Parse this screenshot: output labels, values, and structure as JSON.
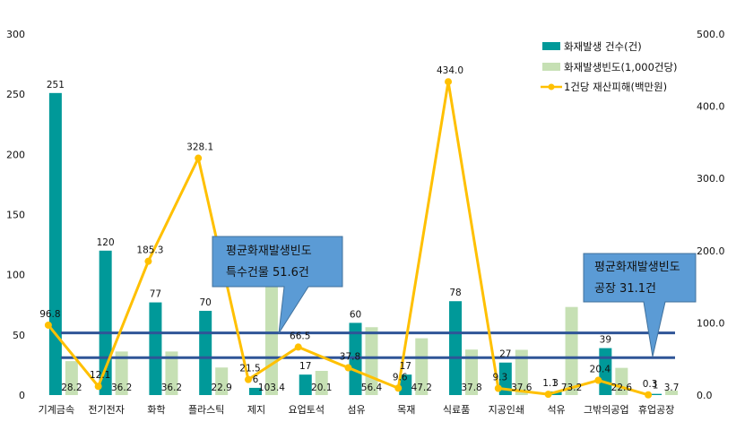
{
  "chart_data": {
    "type": "bar",
    "categories": [
      "기계금속",
      "전기전자",
      "화학",
      "플라스틱",
      "제지",
      "요업토석",
      "섬유",
      "목재",
      "식료품",
      "지공인쇄",
      "석유",
      "그밖의공업",
      "휴업공장"
    ],
    "series": [
      {
        "name": "화재발생 건수(건)",
        "kind": "bar",
        "axis": "left",
        "color": "#009999",
        "values": [
          251,
          120,
          77,
          70,
          6,
          17,
          60,
          17,
          78,
          27,
          3,
          39,
          1
        ],
        "labels": [
          "251",
          "120",
          "77",
          "70",
          "6",
          "17",
          "60",
          "17",
          "78",
          "27",
          "3",
          "39",
          "1"
        ]
      },
      {
        "name": "화재발생빈도(1,000건당)",
        "kind": "bar",
        "axis": "left",
        "color": "#c6e0b4",
        "values": [
          28.2,
          36.2,
          36.2,
          22.9,
          103.4,
          20.1,
          56.4,
          47.2,
          37.8,
          37.6,
          73.2,
          22.6,
          3.7
        ],
        "labels": [
          "28.2",
          "36.2",
          "36.2",
          "22.9",
          "103.4",
          "20.1",
          "56.4",
          "47.2",
          "37.8",
          "37.6",
          "73.2",
          "22.6",
          "3.7"
        ]
      },
      {
        "name": "1건당 재산피해(백만원)",
        "kind": "line",
        "axis": "right",
        "color": "#ffc000",
        "values": [
          96.8,
          12.1,
          185.3,
          328.1,
          21.5,
          66.5,
          37.8,
          9.6,
          434.0,
          9.3,
          1.1,
          20.4,
          0.3
        ],
        "labels": [
          "96.8",
          "12.1",
          "185.3",
          "328.1",
          "21.5",
          "66.5",
          "37.8",
          "9.6",
          "434.0",
          "9.3",
          "1.1",
          "20.4",
          "0.3"
        ]
      }
    ],
    "left_axis": {
      "min": 0,
      "max": 300,
      "ticks": [
        "0",
        "50",
        "100",
        "150",
        "200",
        "250",
        "300"
      ]
    },
    "right_axis": {
      "min": 0,
      "max": 500,
      "ticks": [
        "0.0",
        "100.0",
        "200.0",
        "300.0",
        "400.0",
        "500.0"
      ]
    },
    "reference_lines": [
      {
        "value": 51.6,
        "axis": "left",
        "color": "#2f5597"
      },
      {
        "value": 31.1,
        "axis": "left",
        "color": "#2f5597"
      }
    ],
    "legend_position": "top-right",
    "grid": false
  },
  "callouts": [
    {
      "line1": "평균화재발생빈도",
      "line2": "특수건물  51.6건"
    },
    {
      "line1": "평균화재발생빈도",
      "line2": "공장  31.1건"
    }
  ]
}
